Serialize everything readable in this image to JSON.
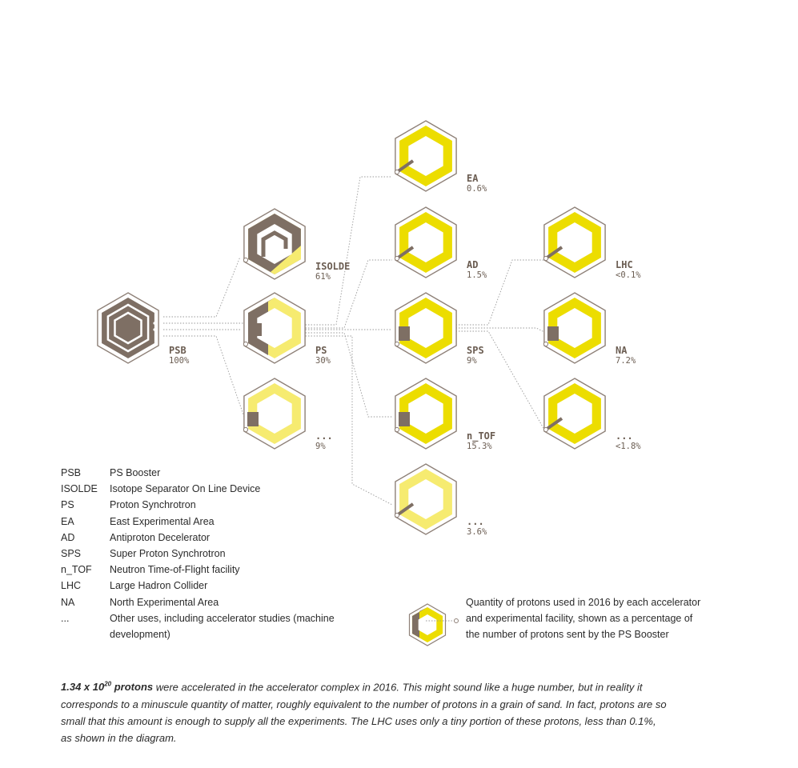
{
  "colors": {
    "yellow": "#ecdd00",
    "pale_yellow": "#f6eb70",
    "brown": "#7e6f64",
    "outline": "#8e8077",
    "dotted": "#9a9a9a"
  },
  "nodes": [
    {
      "id": "psb",
      "name": "PSB",
      "pct": "100%",
      "percent": 100
    },
    {
      "id": "isolde",
      "name": "ISOLDE",
      "pct": "61%",
      "percent": 61
    },
    {
      "id": "ps",
      "name": "PS",
      "pct": "30%",
      "percent": 30
    },
    {
      "id": "ps-other",
      "name": "...",
      "pct": "9%",
      "percent": 9
    },
    {
      "id": "ea",
      "name": "EA",
      "pct": "0.6%",
      "percent": 0.6
    },
    {
      "id": "ad",
      "name": "AD",
      "pct": "1.5%",
      "percent": 1.5
    },
    {
      "id": "sps",
      "name": "SPS",
      "pct": "9%",
      "percent": 9
    },
    {
      "id": "ntof",
      "name": "n_TOF",
      "pct": "15.3%",
      "percent": 15.3
    },
    {
      "id": "sps-other",
      "name": "...",
      "pct": "3.6%",
      "percent": 3.6
    },
    {
      "id": "lhc",
      "name": "LHC",
      "pct": "<0.1%",
      "percent": 0.1
    },
    {
      "id": "na",
      "name": "NA",
      "pct": "7.2%",
      "percent": 7.2
    },
    {
      "id": "lhc-other",
      "name": "...",
      "pct": "<1.8%",
      "percent": 1.8
    }
  ],
  "legend": [
    {
      "abbr": "PSB",
      "desc": "PS Booster"
    },
    {
      "abbr": "ISOLDE",
      "desc": "Isotope Separator On Line Device"
    },
    {
      "abbr": "PS",
      "desc": "Proton Synchrotron"
    },
    {
      "abbr": "EA",
      "desc": "East Experimental Area"
    },
    {
      "abbr": "AD",
      "desc": "Antiproton Decelerator"
    },
    {
      "abbr": "SPS",
      "desc": "Super Proton Synchrotron"
    },
    {
      "abbr": "n_TOF",
      "desc": "Neutron Time-of-Flight facility"
    },
    {
      "abbr": "LHC",
      "desc": "Large Hadron Collider"
    },
    {
      "abbr": "NA",
      "desc": "North Experimental Area"
    },
    {
      "abbr": "...",
      "desc": "Other uses, including accelerator studies (machine development)"
    }
  ],
  "legend_note": "Quantity of protons used in 2016 by each accelerator and experimental facility, shown as a percentage of the number of protons sent by the PS Booster",
  "footnote": {
    "bold_base": "1.34 x 10",
    "bold_exp": "20",
    "bold_tail": " protons",
    "text": " were accelerated in the accelerator complex in 2016. This might sound like a huge number, but in reality it corresponds to a minuscule quantity of matter, roughly equivalent to the number of protons in a grain of sand. In fact, protons are so small that this amount is enough to supply all the experiments. The LHC uses only a tiny portion of these protons, less than 0.1%, as shown in the diagram."
  }
}
